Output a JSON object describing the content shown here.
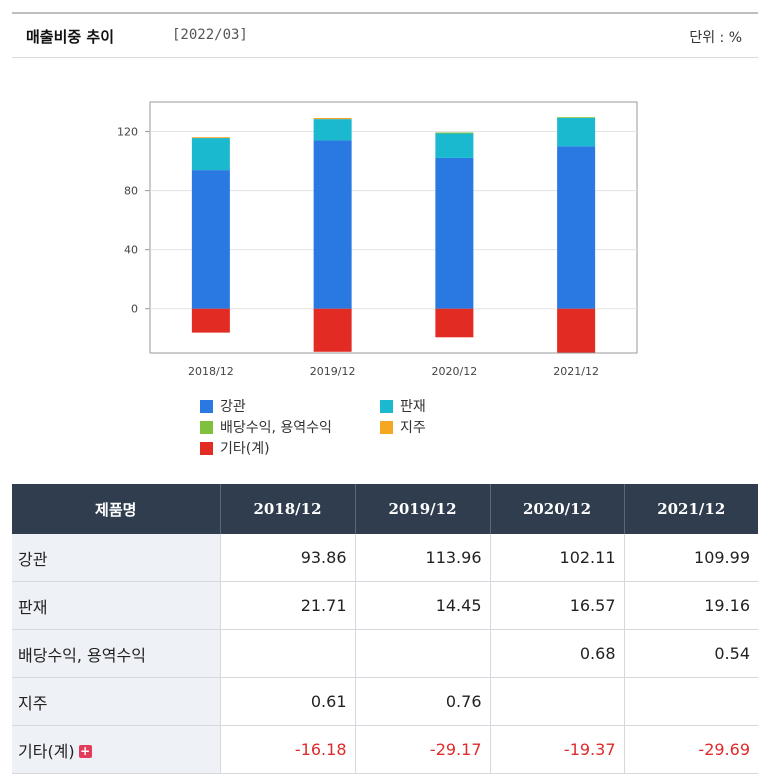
{
  "header": {
    "title": "매출비중 추이",
    "period": "[2022/03]",
    "unit": "단위 : %"
  },
  "colors": {
    "강관": "#2a78e2",
    "판재": "#1bb9d0",
    "배당수익, 용역수익": "#7fc03e",
    "지주": "#f5a623",
    "기타(계)": "#e22b22"
  },
  "chart_data": {
    "type": "bar",
    "stacked": true,
    "categories": [
      "2018/12",
      "2019/12",
      "2020/12",
      "2021/12"
    ],
    "series": [
      {
        "name": "강관",
        "values": [
          93.86,
          113.96,
          102.11,
          109.99
        ]
      },
      {
        "name": "판재",
        "values": [
          21.71,
          14.45,
          16.57,
          19.16
        ]
      },
      {
        "name": "배당수익, 용역수익",
        "values": [
          null,
          null,
          0.68,
          0.54
        ]
      },
      {
        "name": "지주",
        "values": [
          0.61,
          0.76,
          null,
          null
        ]
      },
      {
        "name": "기타(계)",
        "values": [
          -16.18,
          -29.17,
          -19.37,
          -29.69
        ]
      }
    ],
    "yticks": [
      "0",
      "40",
      "80",
      "120"
    ],
    "ylim": [
      -30,
      140
    ],
    "grid": true,
    "legend": "bottom"
  },
  "table": {
    "header_name": "제품명",
    "columns": [
      "2018/12",
      "2019/12",
      "2020/12",
      "2021/12"
    ],
    "rows": [
      {
        "name": "강관",
        "values": [
          "93.86",
          "113.96",
          "102.11",
          "109.99"
        ],
        "negative": false,
        "expand": false
      },
      {
        "name": "판재",
        "values": [
          "21.71",
          "14.45",
          "16.57",
          "19.16"
        ],
        "negative": false,
        "expand": false
      },
      {
        "name": "배당수익, 용역수익",
        "values": [
          "",
          "",
          "0.68",
          "0.54"
        ],
        "negative": false,
        "expand": false
      },
      {
        "name": "지주",
        "values": [
          "0.61",
          "0.76",
          "",
          ""
        ],
        "negative": false,
        "expand": false
      },
      {
        "name": "기타(계)",
        "values": [
          "-16.18",
          "-29.17",
          "-19.37",
          "-29.69"
        ],
        "negative": true,
        "expand": true
      }
    ],
    "expand_icon": "+"
  }
}
